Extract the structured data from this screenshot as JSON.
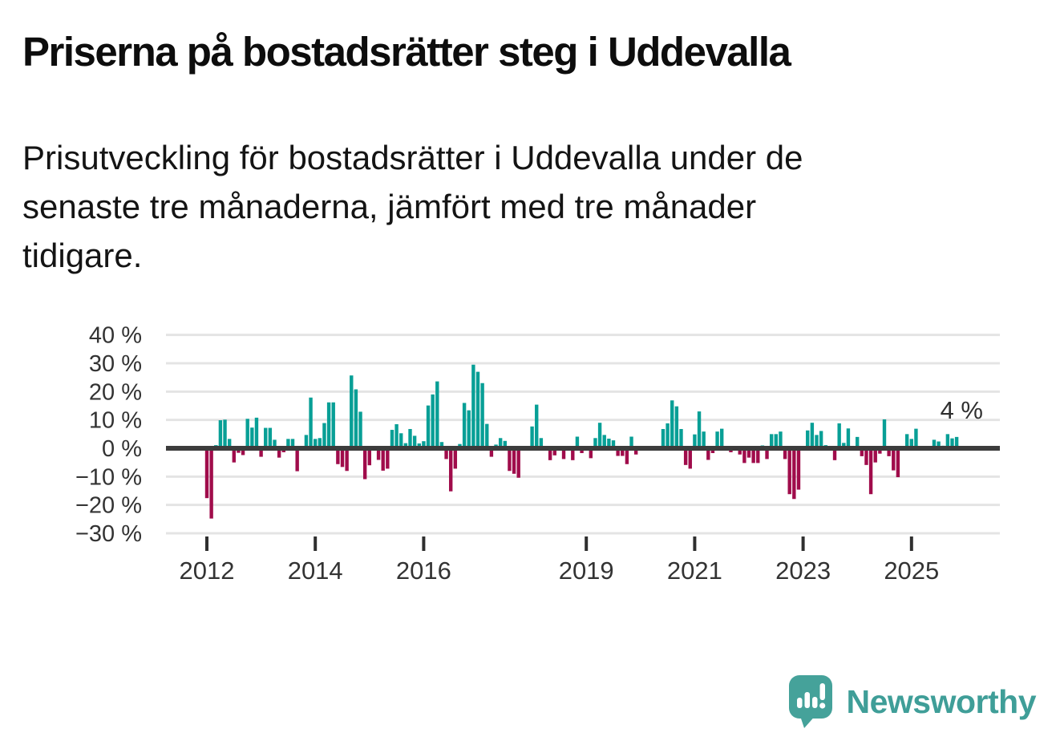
{
  "title": "Priserna på bostadsrätter steg i Uddevalla",
  "subtitle_lines": [
    "Prisutveckling för bostadsrätter i Uddevalla under de",
    "senaste tre månaderna, jämfört med tre månader",
    "tidigare."
  ],
  "annotation": {
    "last_value_label": "4 %"
  },
  "branding": {
    "logo_text": "Newsworthy"
  },
  "colors": {
    "positive": "#089f96",
    "negative": "#a00c4b",
    "axis": "#3c3c3c",
    "grid": "#e4e4e4",
    "label": "#333333",
    "logo_teal": "#45a29a",
    "logo_text_teal": "#3f9e98"
  },
  "chart_data": {
    "type": "bar",
    "unit": "%",
    "ylim": [
      -30,
      40
    ],
    "grid": true,
    "legend_position": "none",
    "xlabel": "",
    "ylabel": "",
    "y_tick_values": [
      40,
      30,
      20,
      10,
      0,
      -10,
      -20,
      -30
    ],
    "y_tick_labels": [
      "40 %",
      "30 %",
      "20 %",
      "10 %",
      "0 %",
      "−10 %",
      "−20 %",
      "−30 %"
    ],
    "x_tick_labels": [
      "2012",
      "2014",
      "2016",
      "2019",
      "2021",
      "2023",
      "2025"
    ],
    "last_point_label": "4 %",
    "months": [
      "2012-01",
      "2012-02",
      "2012-03",
      "2012-04",
      "2012-05",
      "2012-06",
      "2012-07",
      "2012-08",
      "2012-09",
      "2012-10",
      "2012-11",
      "2012-12",
      "2013-01",
      "2013-02",
      "2013-03",
      "2013-04",
      "2013-05",
      "2013-06",
      "2013-07",
      "2013-08",
      "2013-09",
      "2013-10",
      "2013-11",
      "2013-12",
      "2014-01",
      "2014-02",
      "2014-03",
      "2014-04",
      "2014-05",
      "2014-06",
      "2014-07",
      "2014-08",
      "2014-09",
      "2014-10",
      "2014-11",
      "2014-12",
      "2015-01",
      "2015-02",
      "2015-03",
      "2015-04",
      "2015-05",
      "2015-06",
      "2015-07",
      "2015-08",
      "2015-09",
      "2015-10",
      "2015-11",
      "2015-12",
      "2016-01",
      "2016-02",
      "2016-03",
      "2016-04",
      "2016-05",
      "2016-06",
      "2016-07",
      "2016-08",
      "2016-09",
      "2016-10",
      "2016-11",
      "2016-12",
      "2017-01",
      "2017-02",
      "2017-03",
      "2017-04",
      "2017-05",
      "2017-06",
      "2017-07",
      "2017-08",
      "2017-09",
      "2017-10",
      "2017-11",
      "2017-12",
      "2018-01",
      "2018-02",
      "2018-03",
      "2018-04",
      "2018-05",
      "2018-06",
      "2018-07",
      "2018-08",
      "2018-09",
      "2018-10",
      "2018-11",
      "2018-12",
      "2019-01",
      "2019-02",
      "2019-03",
      "2019-04",
      "2019-05",
      "2019-06",
      "2019-07",
      "2019-08",
      "2019-09",
      "2019-10",
      "2019-11",
      "2019-12",
      "2020-01",
      "2020-02",
      "2020-03",
      "2020-04",
      "2020-05",
      "2020-06",
      "2020-07",
      "2020-08",
      "2020-09",
      "2020-10",
      "2020-11",
      "2020-12",
      "2021-01",
      "2021-02",
      "2021-03",
      "2021-04",
      "2021-05",
      "2021-06",
      "2021-07",
      "2021-08",
      "2021-09",
      "2021-10",
      "2021-11",
      "2021-12",
      "2022-01",
      "2022-02",
      "2022-03",
      "2022-04",
      "2022-05",
      "2022-06",
      "2022-07",
      "2022-08",
      "2022-09",
      "2022-10",
      "2022-11",
      "2022-12",
      "2023-01",
      "2023-02",
      "2023-03",
      "2023-04",
      "2023-05",
      "2023-06",
      "2023-07",
      "2023-08",
      "2023-09",
      "2023-10",
      "2023-11",
      "2023-12",
      "2024-01",
      "2024-02",
      "2024-03",
      "2024-04",
      "2024-05",
      "2024-06",
      "2024-07",
      "2024-08",
      "2024-09",
      "2024-10",
      "2024-11",
      "2024-12",
      "2025-01",
      "2025-02",
      "2025-03",
      "2025-04",
      "2025-05",
      "2025-06",
      "2025-07",
      "2025-08",
      "2025-09",
      "2025-10",
      "2025-11"
    ],
    "values": [
      -17.6,
      -24.8,
      1.1,
      9.9,
      10.1,
      3.3,
      -5,
      -1.6,
      -2.4,
      10.4,
      7.3,
      10.8,
      -3,
      7.2,
      7.2,
      3,
      -3.3,
      -1.4,
      3.3,
      3.3,
      -8.1,
      0,
      4.7,
      17.9,
      3.3,
      3.6,
      8.9,
      16.2,
      16.2,
      -5.6,
      -6.6,
      -8,
      25.7,
      20.8,
      12.9,
      -10.9,
      -6,
      0.8,
      -4.1,
      -7.9,
      -7.2,
      6.5,
      8.5,
      5.3,
      1.8,
      6.8,
      4.4,
      1.7,
      2.5,
      15.1,
      19,
      23.6,
      2.2,
      -3.8,
      -15.2,
      -7.2,
      1.5,
      16,
      13.4,
      29.5,
      27,
      23,
      8.6,
      -3,
      1.3,
      3.6,
      2.6,
      -8,
      -9,
      -10.4,
      0,
      0,
      7.7,
      15.4,
      3.6,
      0,
      -4.2,
      -2.5,
      0,
      -3.8,
      0,
      -4.2,
      4.1,
      -1.7,
      0,
      -3.5,
      3.6,
      9,
      4.7,
      3.4,
      2.8,
      -2.7,
      -2.7,
      -5.6,
      4.1,
      -2.2,
      0,
      0.8,
      0,
      0,
      0,
      6.8,
      8.8,
      16.9,
      14.8,
      6.8,
      -5.9,
      -7.2,
      4.9,
      13,
      5.9,
      -4.1,
      -1.7,
      5.9,
      6.9,
      0,
      -1.4,
      0.8,
      -2.2,
      -5.2,
      -3.3,
      -5.2,
      -5.2,
      1,
      -3.8,
      5,
      5,
      5.9,
      -3.8,
      -16.2,
      -17.9,
      -14.6,
      0,
      6.3,
      9,
      4.7,
      6.1,
      1.1,
      0,
      -4.2,
      8.8,
      1.9,
      7,
      0,
      4,
      -2.8,
      -5.9,
      -16.2,
      -5,
      -1.9,
      10.2,
      -2.8,
      -7.8,
      -10.2,
      0.7,
      5,
      3.3,
      6.9,
      0,
      0,
      -0.7,
      3,
      2.4,
      0.9,
      5,
      3.5,
      4
    ]
  }
}
